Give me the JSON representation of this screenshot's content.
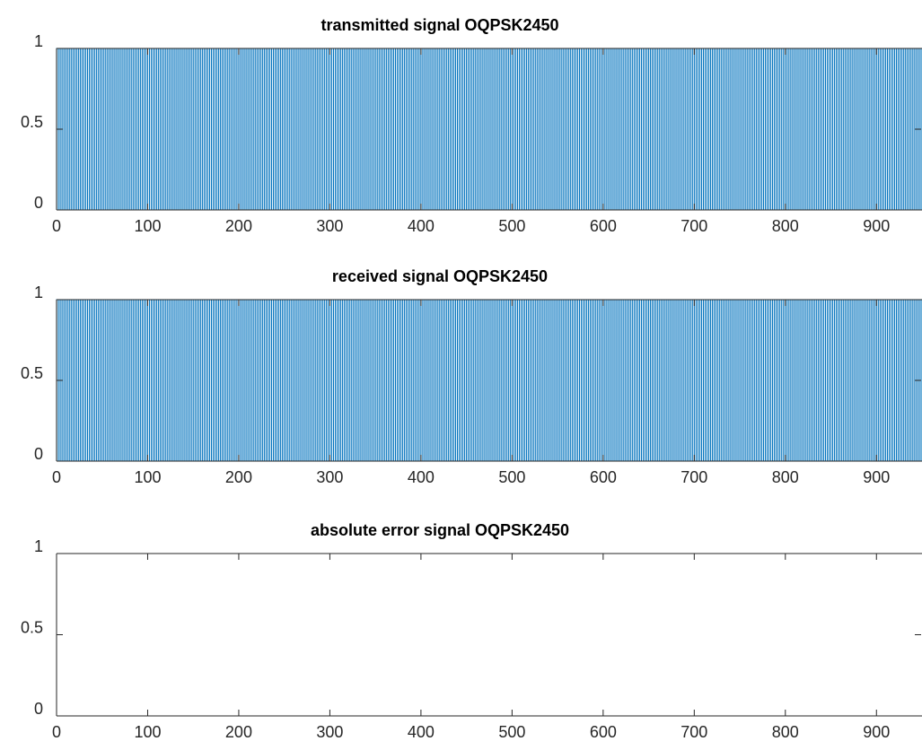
{
  "chart_data": [
    {
      "type": "line",
      "title": "transmitted signal OQPSK2450",
      "xlabel": "",
      "ylabel": "",
      "xlim": [
        0,
        950
      ],
      "ylim": [
        0,
        1
      ],
      "xticks": [
        0,
        100,
        200,
        300,
        400,
        500,
        600,
        700,
        800,
        900
      ],
      "yticks": [
        0,
        0.5,
        1
      ],
      "xticklabels": [
        "0",
        "100",
        "200",
        "300",
        "400",
        "500",
        "600",
        "700",
        "800",
        "900"
      ],
      "yticklabels": [
        "0",
        "0.5",
        "1"
      ],
      "grid": false,
      "series": [
        {
          "color": "#0072BD",
          "waveform": "binary-square",
          "low": 0,
          "high": 1,
          "period": 4,
          "start": 0,
          "end": 950
        }
      ]
    },
    {
      "type": "line",
      "title": "received signal OQPSK2450",
      "xlabel": "",
      "ylabel": "",
      "xlim": [
        0,
        950
      ],
      "ylim": [
        0,
        1
      ],
      "xticks": [
        0,
        100,
        200,
        300,
        400,
        500,
        600,
        700,
        800,
        900
      ],
      "yticks": [
        0,
        0.5,
        1
      ],
      "xticklabels": [
        "0",
        "100",
        "200",
        "300",
        "400",
        "500",
        "600",
        "700",
        "800",
        "900"
      ],
      "yticklabels": [
        "0",
        "0.5",
        "1"
      ],
      "grid": false,
      "series": [
        {
          "color": "#0072BD",
          "waveform": "binary-square",
          "low": 0,
          "high": 1,
          "period": 4,
          "start": 0,
          "end": 950
        }
      ]
    },
    {
      "type": "line",
      "title": "absolute error signal OQPSK2450",
      "xlabel": "",
      "ylabel": "",
      "xlim": [
        0,
        950
      ],
      "ylim": [
        0,
        1
      ],
      "xticks": [
        0,
        100,
        200,
        300,
        400,
        500,
        600,
        700,
        800,
        900
      ],
      "yticks": [
        0,
        0.5,
        1
      ],
      "xticklabels": [
        "0",
        "100",
        "200",
        "300",
        "400",
        "500",
        "600",
        "700",
        "800",
        "900"
      ],
      "yticklabels": [
        "0",
        "0.5",
        "1"
      ],
      "grid": false,
      "series": [
        {
          "color": "#0072BD",
          "waveform": "constant",
          "value": 0,
          "start": 0,
          "end": 950
        }
      ]
    }
  ]
}
